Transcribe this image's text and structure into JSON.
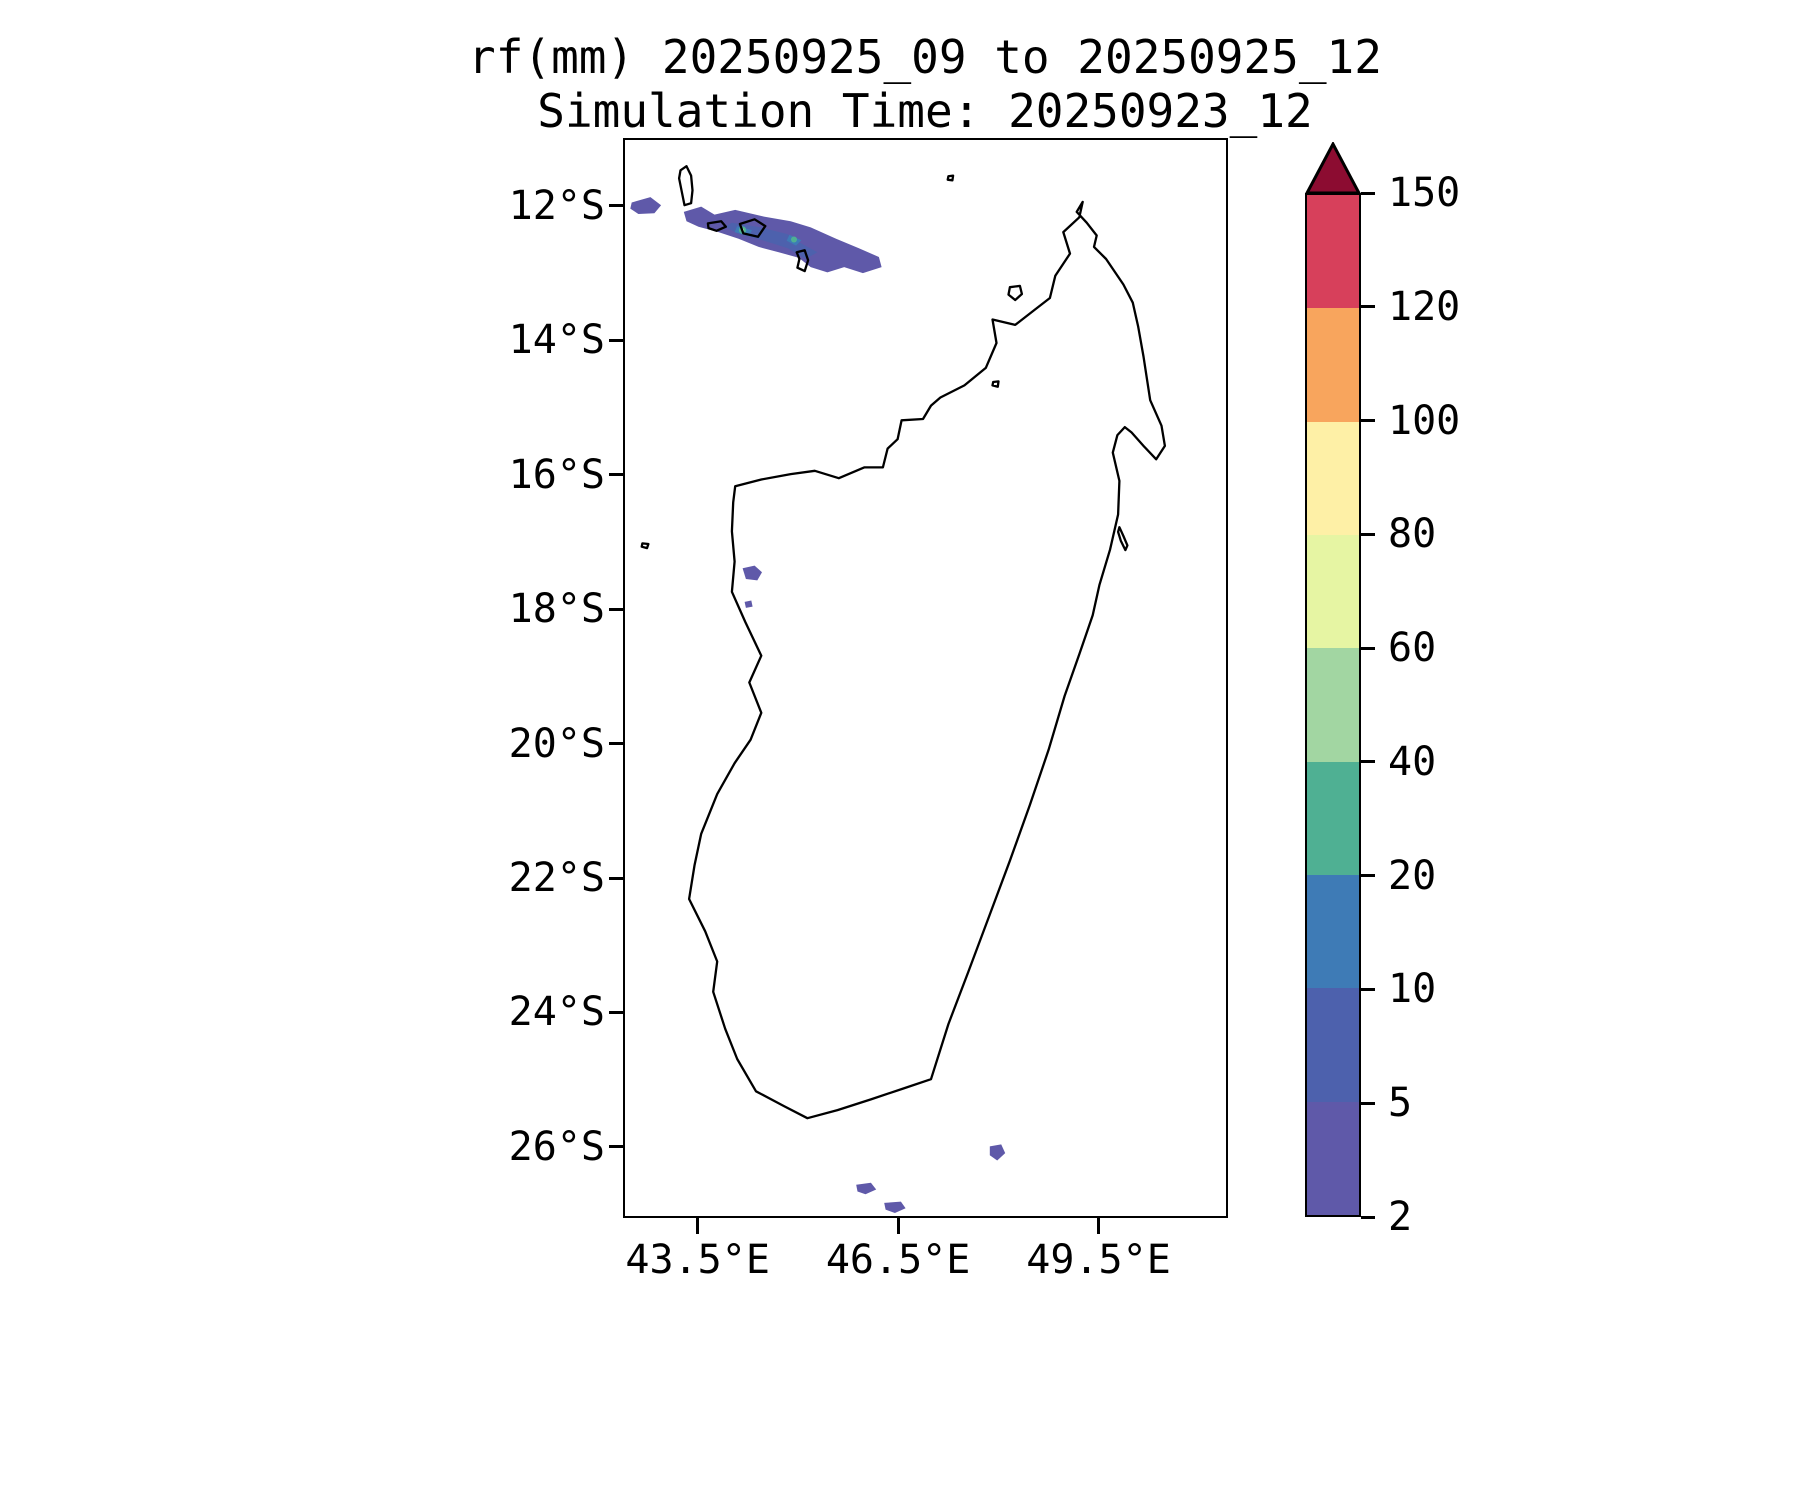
{
  "figure": {
    "title_line1": "rf(mm) 20250925_09 to 20250925_12",
    "title_line2": "Simulation Time: 20250923_12"
  },
  "chart_data": {
    "type": "heatmap",
    "title": "rf(mm) 20250925_09 to 20250925_12",
    "subtitle": "Simulation Time: 20250923_12",
    "variable": "rainfall accumulation (mm)",
    "region": "Madagascar and Comoros archipelago",
    "grid": false,
    "legend_position": "right-colorbar",
    "x_axis": {
      "range": [
        42.42,
        51.4
      ],
      "tick_values": [
        43.5,
        46.5,
        49.5
      ],
      "tick_labels": [
        "43.5°E",
        "46.5°E",
        "49.5°E"
      ]
    },
    "y_axis": {
      "range": [
        11.03,
        27.02
      ],
      "tick_values": [
        12,
        14,
        16,
        18,
        20,
        22,
        24,
        26
      ],
      "tick_labels": [
        "12°S",
        "14°S",
        "16°S",
        "18°S",
        "20°S",
        "22°S",
        "24°S",
        "26°S"
      ]
    },
    "colorbar": {
      "levels": [
        2,
        5,
        10,
        20,
        40,
        60,
        80,
        100,
        120,
        150
      ],
      "tick_labels": [
        "2",
        "5",
        "10",
        "20",
        "40",
        "60",
        "80",
        "100",
        "120",
        "150"
      ],
      "segment_colors": [
        "#5f59a9",
        "#4d61ad",
        "#3e7bb6",
        "#4fb093",
        "#a2d6a2",
        "#e6f5a3",
        "#fef0a6",
        "#f8a55d",
        "#d7405b"
      ],
      "over_color": "#8c0c31",
      "extend": "max"
    },
    "rain_patches": [
      {
        "name": "comoros-rain-band-west",
        "level_mm": "2-5",
        "fill": "#5f59a9",
        "points": [
          [
            42.52,
            11.96
          ],
          [
            42.8,
            11.88
          ],
          [
            42.96,
            12.0
          ],
          [
            42.86,
            12.12
          ],
          [
            42.62,
            12.13
          ],
          [
            42.5,
            12.05
          ]
        ]
      },
      {
        "name": "comoros-rain-band-main",
        "level_mm": "2-5",
        "fill": "#5f59a9",
        "points": [
          [
            43.3,
            12.1
          ],
          [
            43.56,
            12.02
          ],
          [
            43.76,
            12.14
          ],
          [
            44.07,
            12.07
          ],
          [
            44.5,
            12.17
          ],
          [
            44.9,
            12.24
          ],
          [
            45.2,
            12.33
          ],
          [
            45.58,
            12.5
          ],
          [
            45.92,
            12.64
          ],
          [
            46.22,
            12.77
          ],
          [
            46.26,
            12.92
          ],
          [
            45.98,
            13.01
          ],
          [
            45.7,
            12.92
          ],
          [
            45.45,
            13.0
          ],
          [
            45.2,
            12.92
          ],
          [
            45.02,
            12.78
          ],
          [
            44.72,
            12.7
          ],
          [
            44.42,
            12.62
          ],
          [
            44.12,
            12.5
          ],
          [
            43.82,
            12.4
          ],
          [
            43.52,
            12.32
          ],
          [
            43.34,
            12.24
          ]
        ]
      },
      {
        "name": "comoros-rain-core",
        "level_mm": "5-10",
        "fill": "#4d61ad",
        "points": [
          [
            44.02,
            12.26
          ],
          [
            44.45,
            12.33
          ],
          [
            44.85,
            12.43
          ],
          [
            45.08,
            12.58
          ],
          [
            45.3,
            12.7
          ],
          [
            45.12,
            12.8
          ],
          [
            44.86,
            12.64
          ],
          [
            44.48,
            12.52
          ],
          [
            44.1,
            12.42
          ],
          [
            43.92,
            12.32
          ]
        ]
      },
      {
        "name": "comoros-rain-core-blue-1",
        "level_mm": "10-20",
        "fill": "#3e7bb6",
        "points": [
          [
            44.1,
            12.31
          ],
          [
            44.32,
            12.37
          ],
          [
            44.28,
            12.46
          ],
          [
            44.06,
            12.4
          ]
        ]
      },
      {
        "name": "comoros-rain-core-blue-2",
        "level_mm": "10-20",
        "fill": "#3e7bb6",
        "points": [
          [
            44.88,
            12.44
          ],
          [
            45.06,
            12.52
          ],
          [
            44.98,
            12.6
          ],
          [
            44.84,
            12.53
          ]
        ]
      },
      {
        "name": "comoros-rain-spot-teal-1",
        "level_mm": "20-40",
        "fill": "#4fb093",
        "circle": [
          44.18,
          12.37,
          0.055
        ]
      },
      {
        "name": "comoros-rain-spot-teal-2",
        "level_mm": "20-40",
        "fill": "#4fb093",
        "circle": [
          44.95,
          12.51,
          0.045
        ]
      },
      {
        "name": "comoros-rain-spot-green",
        "level_mm": "40-60",
        "fill": "#a2d6a2",
        "circle": [
          44.18,
          12.37,
          0.024
        ]
      },
      {
        "name": "west-coast-rain-1",
        "level_mm": "2-5",
        "fill": "#5f59a9",
        "points": [
          [
            44.18,
            17.4
          ],
          [
            44.36,
            17.36
          ],
          [
            44.47,
            17.46
          ],
          [
            44.4,
            17.58
          ],
          [
            44.23,
            17.56
          ]
        ]
      },
      {
        "name": "west-coast-rain-2",
        "level_mm": "2-5",
        "fill": "#5f59a9",
        "points": [
          [
            44.21,
            17.9
          ],
          [
            44.31,
            17.88
          ],
          [
            44.33,
            17.97
          ],
          [
            44.23,
            17.99
          ]
        ]
      },
      {
        "name": "southern-ocean-rain-1",
        "level_mm": "2-5",
        "fill": "#5f59a9",
        "points": [
          [
            47.88,
            26.0
          ],
          [
            48.05,
            25.97
          ],
          [
            48.11,
            26.1
          ],
          [
            47.99,
            26.21
          ],
          [
            47.88,
            26.13
          ]
        ]
      },
      {
        "name": "southern-ocean-rain-2",
        "level_mm": "2-5",
        "fill": "#5f59a9",
        "points": [
          [
            45.88,
            26.57
          ],
          [
            46.1,
            26.54
          ],
          [
            46.18,
            26.64
          ],
          [
            46.02,
            26.71
          ],
          [
            45.9,
            26.67
          ]
        ]
      },
      {
        "name": "southern-ocean-rain-3",
        "level_mm": "2-5",
        "fill": "#5f59a9",
        "points": [
          [
            46.3,
            26.84
          ],
          [
            46.55,
            26.82
          ],
          [
            46.62,
            26.92
          ],
          [
            46.46,
            26.99
          ],
          [
            46.32,
            26.94
          ]
        ]
      }
    ],
    "coastlines": [
      {
        "name": "madagascar",
        "points": [
          [
            49.27,
            11.95
          ],
          [
            49.18,
            12.1
          ],
          [
            49.33,
            12.26
          ],
          [
            49.48,
            12.45
          ],
          [
            49.44,
            12.62
          ],
          [
            49.62,
            12.8
          ],
          [
            49.88,
            13.18
          ],
          [
            50.02,
            13.45
          ],
          [
            50.1,
            13.8
          ],
          [
            50.18,
            14.25
          ],
          [
            50.28,
            14.9
          ],
          [
            50.45,
            15.28
          ],
          [
            50.5,
            15.58
          ],
          [
            50.37,
            15.78
          ],
          [
            50.18,
            15.58
          ],
          [
            50.0,
            15.38
          ],
          [
            49.9,
            15.3
          ],
          [
            49.79,
            15.42
          ],
          [
            49.72,
            15.68
          ],
          [
            49.82,
            16.1
          ],
          [
            49.8,
            16.6
          ],
          [
            49.68,
            17.12
          ],
          [
            49.52,
            17.65
          ],
          [
            49.42,
            18.1
          ],
          [
            49.22,
            18.68
          ],
          [
            49.0,
            19.3
          ],
          [
            48.76,
            20.1
          ],
          [
            48.48,
            20.92
          ],
          [
            48.18,
            21.75
          ],
          [
            47.88,
            22.55
          ],
          [
            47.56,
            23.4
          ],
          [
            47.26,
            24.18
          ],
          [
            47.0,
            25.0
          ],
          [
            46.58,
            25.14
          ],
          [
            46.1,
            25.3
          ],
          [
            45.6,
            25.46
          ],
          [
            45.15,
            25.58
          ],
          [
            44.8,
            25.4
          ],
          [
            44.38,
            25.18
          ],
          [
            44.1,
            24.7
          ],
          [
            43.92,
            24.25
          ],
          [
            43.74,
            23.7
          ],
          [
            43.8,
            23.25
          ],
          [
            43.62,
            22.8
          ],
          [
            43.38,
            22.32
          ],
          [
            43.46,
            21.82
          ],
          [
            43.56,
            21.35
          ],
          [
            43.8,
            20.76
          ],
          [
            44.06,
            20.3
          ],
          [
            44.3,
            19.95
          ],
          [
            44.46,
            19.55
          ],
          [
            44.28,
            19.1
          ],
          [
            44.46,
            18.7
          ],
          [
            44.22,
            18.2
          ],
          [
            44.02,
            17.75
          ],
          [
            44.06,
            17.3
          ],
          [
            44.02,
            16.85
          ],
          [
            44.04,
            16.42
          ],
          [
            44.07,
            16.18
          ],
          [
            44.46,
            16.08
          ],
          [
            44.9,
            16.0
          ],
          [
            45.26,
            15.95
          ],
          [
            45.62,
            16.06
          ],
          [
            46.0,
            15.9
          ],
          [
            46.28,
            15.9
          ],
          [
            46.35,
            15.62
          ],
          [
            46.5,
            15.48
          ],
          [
            46.56,
            15.2
          ],
          [
            46.88,
            15.18
          ],
          [
            47.0,
            14.98
          ],
          [
            47.14,
            14.86
          ],
          [
            47.5,
            14.68
          ],
          [
            47.82,
            14.42
          ],
          [
            47.98,
            14.05
          ],
          [
            47.92,
            13.7
          ],
          [
            48.26,
            13.78
          ],
          [
            48.56,
            13.55
          ],
          [
            48.78,
            13.38
          ],
          [
            48.86,
            13.05
          ],
          [
            49.08,
            12.72
          ],
          [
            48.98,
            12.4
          ],
          [
            49.22,
            12.18
          ]
        ]
      },
      {
        "name": "grande-comore",
        "points": [
          [
            43.25,
            11.48
          ],
          [
            43.34,
            11.42
          ],
          [
            43.41,
            11.56
          ],
          [
            43.43,
            11.78
          ],
          [
            43.41,
            11.97
          ],
          [
            43.31,
            12.0
          ],
          [
            43.27,
            11.8
          ],
          [
            43.23,
            11.6
          ]
        ]
      },
      {
        "name": "moheli",
        "points": [
          [
            43.66,
            12.27
          ],
          [
            43.86,
            12.24
          ],
          [
            43.93,
            12.32
          ],
          [
            43.79,
            12.38
          ],
          [
            43.67,
            12.34
          ]
        ]
      },
      {
        "name": "anjouan",
        "points": [
          [
            44.14,
            12.28
          ],
          [
            44.36,
            12.21
          ],
          [
            44.52,
            12.31
          ],
          [
            44.41,
            12.47
          ],
          [
            44.19,
            12.42
          ]
        ]
      },
      {
        "name": "mayotte",
        "points": [
          [
            44.99,
            12.7
          ],
          [
            45.11,
            12.67
          ],
          [
            45.16,
            12.82
          ],
          [
            45.11,
            12.98
          ],
          [
            45.0,
            12.93
          ],
          [
            45.03,
            12.8
          ]
        ]
      },
      {
        "name": "nosy-be",
        "points": [
          [
            48.18,
            13.22
          ],
          [
            48.33,
            13.2
          ],
          [
            48.36,
            13.32
          ],
          [
            48.26,
            13.41
          ],
          [
            48.16,
            13.33
          ]
        ]
      },
      {
        "name": "sainte-marie",
        "points": [
          [
            49.82,
            16.79
          ],
          [
            49.88,
            16.92
          ],
          [
            49.94,
            17.06
          ],
          [
            49.91,
            17.13
          ],
          [
            49.84,
            16.99
          ],
          [
            49.8,
            16.86
          ]
        ]
      },
      {
        "name": "juan-de-nova",
        "points": [
          [
            42.68,
            17.03
          ],
          [
            42.77,
            17.04
          ],
          [
            42.75,
            17.1
          ],
          [
            42.67,
            17.08
          ]
        ]
      },
      {
        "name": "glorieuses",
        "points": [
          [
            47.26,
            11.57
          ],
          [
            47.33,
            11.56
          ],
          [
            47.32,
            11.63
          ],
          [
            47.25,
            11.62
          ]
        ]
      },
      {
        "name": "offshore-islet",
        "points": [
          [
            47.93,
            14.63
          ],
          [
            48.01,
            14.62
          ],
          [
            48.0,
            14.7
          ],
          [
            47.92,
            14.68
          ]
        ]
      }
    ]
  }
}
